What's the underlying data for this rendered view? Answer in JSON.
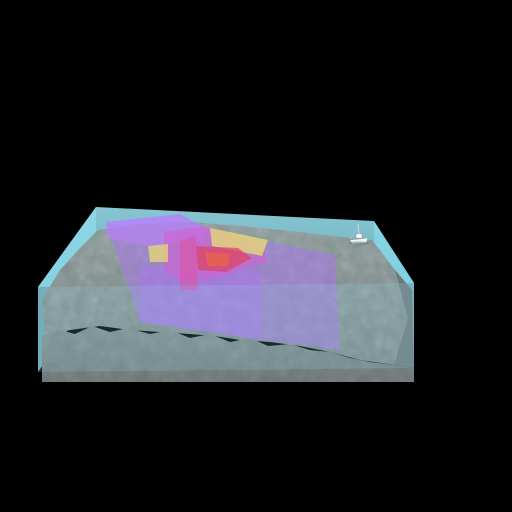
{
  "scene": {
    "background_color": "#000000",
    "water_color": "#8fdcec",
    "seafloor_color": "#7f8f8f",
    "seafloor_side_color": "#6f7b7b",
    "plume_colors": [
      "#b070ff",
      "#d060d0",
      "#e04080",
      "#f0e060"
    ],
    "objects": [
      "water-volume",
      "terrain-block",
      "pollution-plume",
      "research-vessel"
    ]
  }
}
